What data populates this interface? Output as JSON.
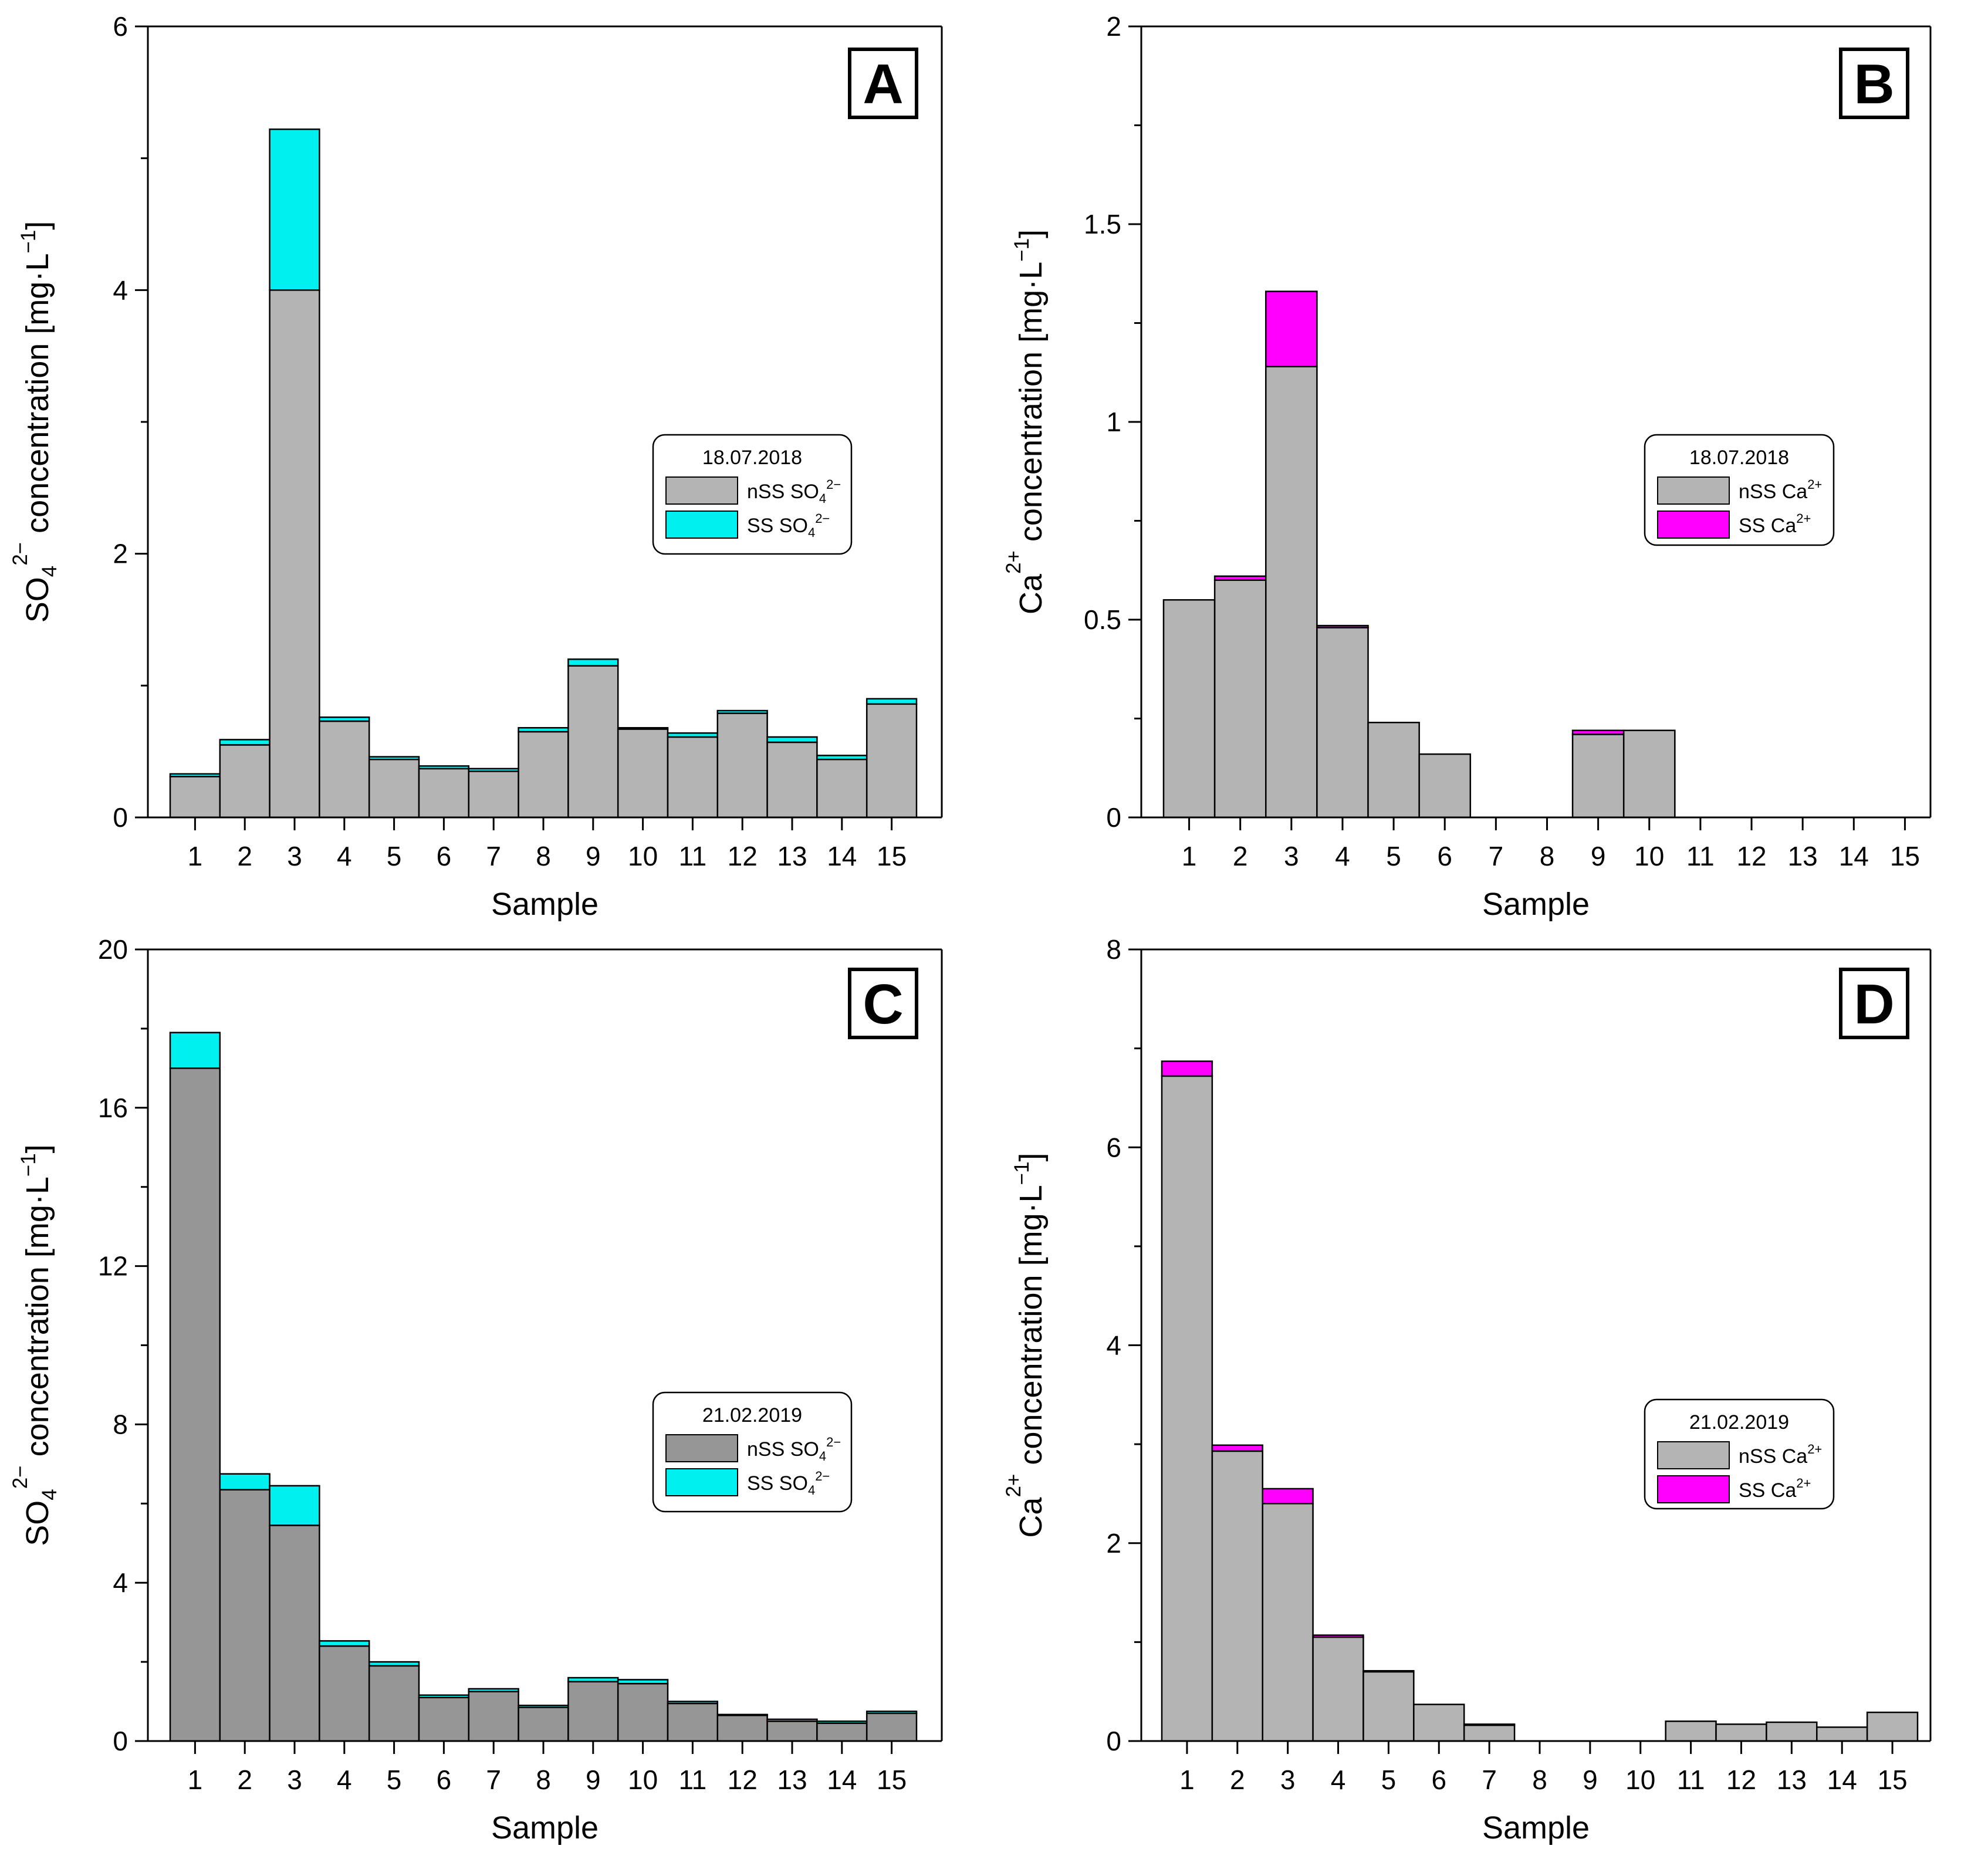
{
  "chart_data": [
    {
      "panel": "A",
      "type": "bar",
      "stacked": true,
      "title": "",
      "xlabel": "Sample",
      "ylabel": "SO4 2− concentration [mg·L−1]",
      "ylabel_main": "SO",
      "ylabel_sub": "4",
      "ylabel_sup": "2−",
      "ylabel_rest": " concentration [mg·L",
      "ylabel_sup2": "−1",
      "ylabel_end": "]",
      "ylim": [
        0,
        6
      ],
      "yticks_major": [
        0,
        2,
        4,
        6
      ],
      "yticks_minor": [
        1,
        3,
        5
      ],
      "categories": [
        "1",
        "2",
        "3",
        "4",
        "5",
        "6",
        "7",
        "8",
        "9",
        "10",
        "11",
        "12",
        "13",
        "14",
        "15"
      ],
      "legend": {
        "title": "18.07.2018",
        "position": "center-right",
        "entries": [
          {
            "base": "nSS SO",
            "sub": "4",
            "sup": "2−"
          },
          {
            "base": "SS SO",
            "sub": "4",
            "sup": "2−"
          }
        ]
      },
      "series": [
        {
          "name": "nSS SO4 2−",
          "color": "#b4b4b4",
          "values": [
            0.31,
            0.55,
            4.0,
            0.73,
            0.44,
            0.37,
            0.35,
            0.65,
            1.15,
            0.67,
            0.61,
            0.79,
            0.57,
            0.44,
            0.86
          ]
        },
        {
          "name": "SS SO4 2−",
          "color": "#00f0f0",
          "values": [
            0.02,
            0.04,
            1.22,
            0.03,
            0.02,
            0.02,
            0.02,
            0.03,
            0.05,
            0.01,
            0.03,
            0.02,
            0.04,
            0.03,
            0.04
          ]
        }
      ]
    },
    {
      "panel": "B",
      "type": "bar",
      "stacked": true,
      "title": "",
      "xlabel": "Sample",
      "ylabel": "Ca2+ concentration [mg·L−1]",
      "ylabel_main": "Ca",
      "ylabel_sub": "",
      "ylabel_sup": "2+",
      "ylabel_rest": " concentration [mg·L",
      "ylabel_sup2": "−1",
      "ylabel_end": "]",
      "ylim": [
        0,
        2
      ],
      "yticks_major": [
        0,
        0.5,
        1,
        1.5,
        2
      ],
      "yticks_labels": [
        "0",
        "0.5",
        "1",
        "1.5",
        "2"
      ],
      "yticks_minor": [
        0.25,
        0.75,
        1.25,
        1.75
      ],
      "categories": [
        "1",
        "2",
        "3",
        "4",
        "5",
        "6",
        "7",
        "8",
        "9",
        "10",
        "11",
        "12",
        "13",
        "14",
        "15"
      ],
      "legend": {
        "title": "18.07.2018",
        "position": "center-right",
        "entries": [
          {
            "base": "nSS Ca",
            "sub": "",
            "sup": "2+"
          },
          {
            "base": "SS Ca",
            "sub": "",
            "sup": "2+"
          }
        ]
      },
      "series": [
        {
          "name": "nSS Ca2+",
          "color": "#b4b4b4",
          "values": [
            0.55,
            0.6,
            1.14,
            0.48,
            0.24,
            0.16,
            0,
            0,
            0.21,
            0.22,
            0,
            0,
            0,
            0,
            0
          ]
        },
        {
          "name": "SS Ca2+",
          "color": "#ff00ff",
          "values": [
            0,
            0.01,
            0.19,
            0.005,
            0,
            0,
            0,
            0,
            0.01,
            0,
            0,
            0,
            0,
            0,
            0
          ]
        }
      ]
    },
    {
      "panel": "C",
      "type": "bar",
      "stacked": true,
      "title": "",
      "xlabel": "Sample",
      "ylabel": "SO4 2− concentration [mg·L−1]",
      "ylabel_main": "SO",
      "ylabel_sub": "4",
      "ylabel_sup": "2−",
      "ylabel_rest": " concentration [mg·L",
      "ylabel_sup2": "−1",
      "ylabel_end": "]",
      "ylim": [
        0,
        20
      ],
      "yticks_major": [
        0,
        4,
        8,
        12,
        16,
        20
      ],
      "yticks_minor": [
        2,
        6,
        10,
        14,
        18
      ],
      "categories": [
        "1",
        "2",
        "3",
        "4",
        "5",
        "6",
        "7",
        "8",
        "9",
        "10",
        "11",
        "12",
        "13",
        "14",
        "15"
      ],
      "legend": {
        "title": "21.02.2019",
        "position": "center-right",
        "entries": [
          {
            "base": "nSS SO",
            "sub": "4",
            "sup": "2−"
          },
          {
            "base": "SS SO",
            "sub": "4",
            "sup": "2−"
          }
        ]
      },
      "series": [
        {
          "name": "nSS SO4 2−",
          "color": "#969696",
          "values": [
            17.0,
            6.35,
            5.45,
            2.4,
            1.9,
            1.1,
            1.25,
            0.85,
            1.5,
            1.45,
            0.95,
            0.65,
            0.5,
            0.45,
            0.7
          ]
        },
        {
          "name": "SS SO4 2−",
          "color": "#00f0f0",
          "values": [
            0.9,
            0.4,
            1.0,
            0.13,
            0.1,
            0.06,
            0.07,
            0.05,
            0.1,
            0.1,
            0.05,
            0.02,
            0.05,
            0.05,
            0.05
          ]
        }
      ]
    },
    {
      "panel": "D",
      "type": "bar",
      "stacked": true,
      "title": "",
      "xlabel": "Sample",
      "ylabel": "Ca2+ concentration [mg·L−1]",
      "ylabel_main": "Ca",
      "ylabel_sub": "",
      "ylabel_sup": "2+",
      "ylabel_rest": " concentration [mg·L",
      "ylabel_sup2": "−1",
      "ylabel_end": "]",
      "ylim": [
        0,
        8
      ],
      "yticks_major": [
        0,
        2,
        4,
        6,
        8
      ],
      "yticks_minor": [
        1,
        3,
        5,
        7
      ],
      "categories": [
        "1",
        "2",
        "3",
        "4",
        "5",
        "6",
        "7",
        "8",
        "9",
        "10",
        "11",
        "12",
        "13",
        "14",
        "15"
      ],
      "legend": {
        "title": "21.02.2019",
        "position": "center-right",
        "entries": [
          {
            "base": "nSS Ca",
            "sub": "",
            "sup": "2+"
          },
          {
            "base": "SS Ca",
            "sub": "",
            "sup": "2+"
          }
        ]
      },
      "series": [
        {
          "name": "nSS Ca2+",
          "color": "#b4b4b4",
          "values": [
            6.72,
            2.93,
            2.4,
            1.05,
            0.7,
            0.37,
            0.16,
            0,
            0,
            0,
            0.2,
            0.17,
            0.19,
            0.14,
            0.29
          ]
        },
        {
          "name": "SS Ca2+",
          "color": "#ff00ff",
          "values": [
            0.15,
            0.06,
            0.15,
            0.02,
            0.01,
            0,
            0.01,
            0,
            0,
            0,
            0,
            0,
            0,
            0,
            0
          ]
        }
      ]
    }
  ]
}
